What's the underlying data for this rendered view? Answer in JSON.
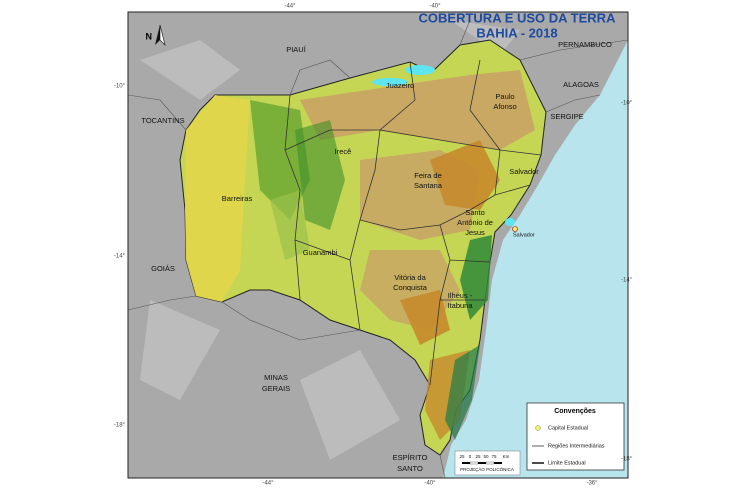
{
  "title": {
    "line1": "COBERTURA E USO DA TERRA",
    "line2": "BAHIA - 2018"
  },
  "graticule": {
    "top": [
      "-44°",
      "-40°"
    ],
    "left": [
      "-10°",
      "-14°",
      "-18°"
    ],
    "right": [
      "-10°",
      "-14°",
      "-18°"
    ],
    "bottom": [
      "-44°",
      "-40°",
      "-36°"
    ]
  },
  "neighbors": [
    {
      "lines": [
        "PIAUÍ"
      ]
    },
    {
      "lines": [
        "PERNAMBUCO"
      ]
    },
    {
      "lines": [
        "ALAGOAS"
      ]
    },
    {
      "lines": [
        "SERGIPE"
      ]
    },
    {
      "lines": [
        "TOCANTINS"
      ]
    },
    {
      "lines": [
        "GOIÁS"
      ]
    },
    {
      "lines": [
        "MINAS",
        "GERAIS"
      ]
    },
    {
      "lines": [
        "ESPÍRITO",
        "SANTO"
      ]
    }
  ],
  "regions": [
    {
      "lines": [
        "Juazeiro"
      ]
    },
    {
      "lines": [
        "Paulo",
        "Afonso"
      ]
    },
    {
      "lines": [
        "Irecê"
      ]
    },
    {
      "lines": [
        "Feira de",
        "Santana"
      ]
    },
    {
      "lines": [
        "Salvador"
      ]
    },
    {
      "lines": [
        "Barreiras"
      ]
    },
    {
      "lines": [
        "Santo",
        "Antônio de",
        "Jesus"
      ]
    },
    {
      "lines": [
        "Guanambi"
      ]
    },
    {
      "lines": [
        "Vitória da",
        "Conquista"
      ]
    },
    {
      "lines": [
        "Ilhéus -",
        "Itabuna"
      ]
    }
  ],
  "capital": "Salvador",
  "north": "N",
  "legend": {
    "title": "Convenções",
    "items": [
      "Capital Estadual",
      "Regiões Intermediárias",
      "Limite Estadual"
    ]
  },
  "scale": {
    "ticks": [
      "25",
      "0",
      "25",
      "50",
      "75",
      "Km"
    ],
    "projection": "PROJEÇÃO POLICÔNICA"
  }
}
